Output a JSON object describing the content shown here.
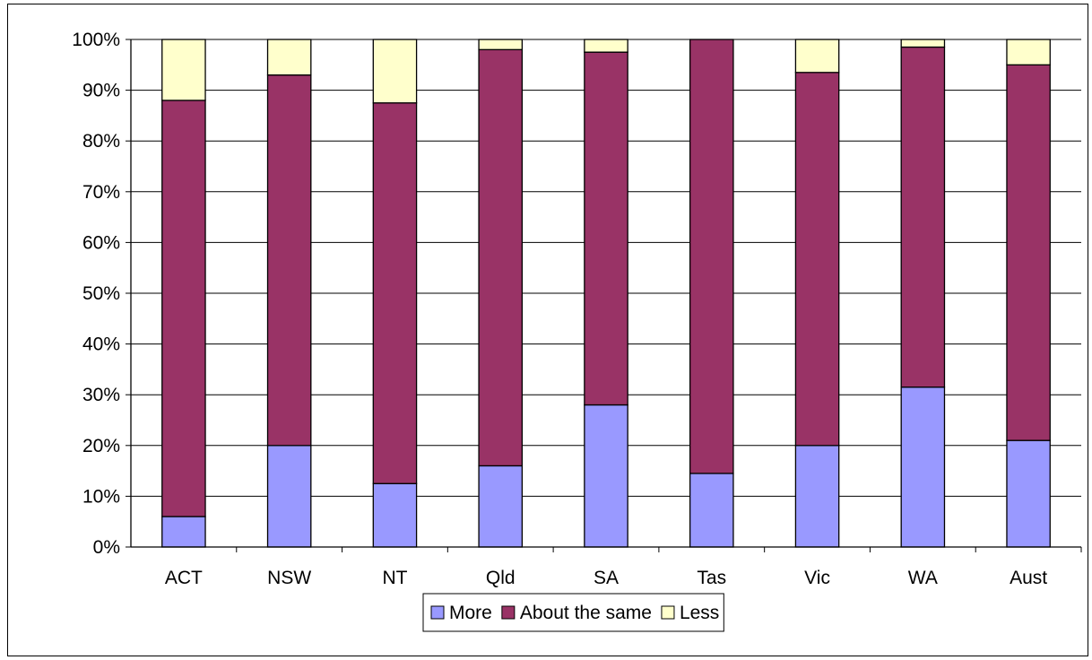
{
  "chart_data": {
    "type": "bar",
    "stacked": true,
    "percent": true,
    "categories": [
      "ACT",
      "NSW",
      "NT",
      "Qld",
      "SA",
      "Tas",
      "Vic",
      "WA",
      "Aust"
    ],
    "series": [
      {
        "name": "More",
        "color": "#9999FF",
        "values": [
          6,
          20,
          12.5,
          16,
          28,
          14.5,
          20,
          31.5,
          21
        ]
      },
      {
        "name": "About the same",
        "color": "#993366",
        "values": [
          82,
          73,
          75,
          82,
          69.5,
          85.5,
          73.5,
          67,
          74
        ]
      },
      {
        "name": "Less",
        "color": "#FFFFCC",
        "values": [
          12,
          7,
          12.5,
          2,
          2.5,
          0,
          6.5,
          1.5,
          5
        ]
      }
    ],
    "y_ticks": [
      "0%",
      "10%",
      "20%",
      "30%",
      "40%",
      "50%",
      "60%",
      "70%",
      "80%",
      "90%",
      "100%"
    ],
    "ylim": [
      0,
      100
    ],
    "grid": true,
    "legend_position": "bottom"
  }
}
